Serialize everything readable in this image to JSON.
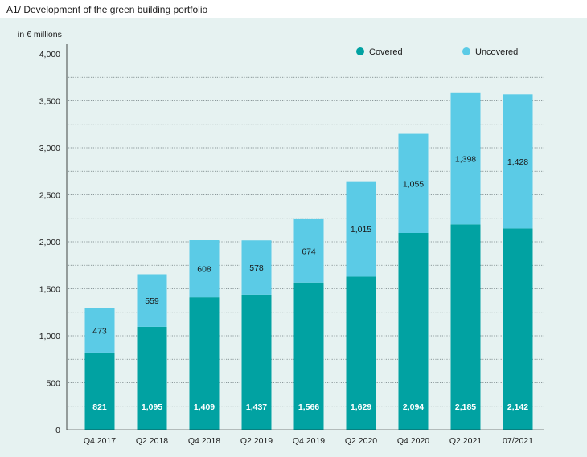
{
  "header": {
    "title": "A1/ Development of the green building portfolio"
  },
  "chart_data": {
    "type": "bar",
    "stacked": true,
    "title": "A1/ Development of the green building portfolio",
    "ylabel": "in € millions",
    "ylim": [
      0,
      4000
    ],
    "yticks": [
      0,
      500,
      1000,
      1500,
      2000,
      2500,
      3000,
      3500,
      4000
    ],
    "ytick_labels": [
      "0",
      "500",
      "1,000",
      "1,500",
      "2,000",
      "2,500",
      "3,000",
      "3,500",
      "4,000"
    ],
    "grid": "dotted horizontal",
    "legend_position": "top-right",
    "categories": [
      "Q4 2017",
      "Q2 2018",
      "Q4 2018",
      "Q2 2019",
      "Q4 2019",
      "Q2 2020",
      "Q4 2020",
      "Q2 2021",
      "07/2021"
    ],
    "series": [
      {
        "name": "Covered",
        "color": "#01a2a2",
        "values": [
          821,
          1095,
          1409,
          1437,
          1566,
          1629,
          2094,
          2185,
          2142
        ],
        "labels": [
          "821",
          "1,095",
          "1,409",
          "1,437",
          "1,566",
          "1,629",
          "2,094",
          "2,185",
          "2,142"
        ]
      },
      {
        "name": "Uncovered",
        "color": "#5bcbe6",
        "values": [
          473,
          559,
          608,
          578,
          674,
          1015,
          1055,
          1398,
          1428
        ],
        "labels": [
          "473",
          "559",
          "608",
          "578",
          "674",
          "1,015",
          "1,055",
          "1,398",
          "1,428"
        ]
      }
    ]
  }
}
